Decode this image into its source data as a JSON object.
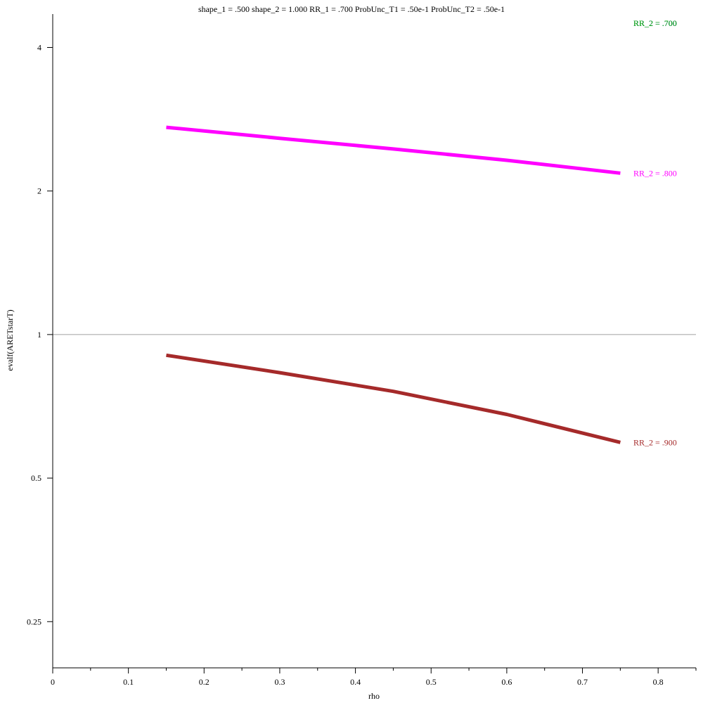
{
  "chart_data": {
    "type": "line",
    "title": "shape_1 = .500  shape_2 = 1.000  RR_1 = .700  ProbUnc_T1 = .50e-1  ProbUnc_T2 = .50e-1",
    "xlabel": "rho",
    "ylabel": "evalf(ARETstarT)",
    "xlim": [
      0,
      0.85
    ],
    "ylim": [
      0.2,
      4.7
    ],
    "y_scale": "log2",
    "grid": false,
    "reference_line": {
      "y": 1,
      "color": "#a0a0a0"
    },
    "x_ticks": [
      {
        "value": 0,
        "label": "0"
      },
      {
        "value": 0.1,
        "label": "0.1"
      },
      {
        "value": 0.2,
        "label": "0.2"
      },
      {
        "value": 0.3,
        "label": "0.3"
      },
      {
        "value": 0.4,
        "label": "0.4"
      },
      {
        "value": 0.5,
        "label": "0.5"
      },
      {
        "value": 0.6,
        "label": "0.6"
      },
      {
        "value": 0.7,
        "label": "0.7"
      },
      {
        "value": 0.8,
        "label": "0.8"
      }
    ],
    "x_minor_step": 0.05,
    "y_ticks": [
      {
        "value": 0.25,
        "label": "0.25"
      },
      {
        "value": 0.5,
        "label": "0.5"
      },
      {
        "value": 1,
        "label": "1"
      },
      {
        "value": 2,
        "label": "2"
      },
      {
        "value": 4,
        "label": "4"
      }
    ],
    "series": [
      {
        "name": "RR_2 = .700",
        "color": "#0000cc",
        "x": [],
        "y": [],
        "label_value": 4.5
      },
      {
        "name": "RR_2 = .700",
        "color": "#00aa00",
        "x": [],
        "y": [],
        "label_value": 4.5
      },
      {
        "name": "RR_2 = .800",
        "color": "#ff00ff",
        "x": [
          0.15,
          0.3,
          0.45,
          0.6,
          0.75
        ],
        "y": [
          2.72,
          2.58,
          2.45,
          2.32,
          2.18
        ],
        "label_value": 2.18
      },
      {
        "name": "RR_2 = .900",
        "color": "#a52a2a",
        "x": [
          0.15,
          0.3,
          0.45,
          0.6,
          0.75
        ],
        "y": [
          0.905,
          0.832,
          0.76,
          0.68,
          0.594
        ],
        "label_value": 0.594
      }
    ]
  }
}
